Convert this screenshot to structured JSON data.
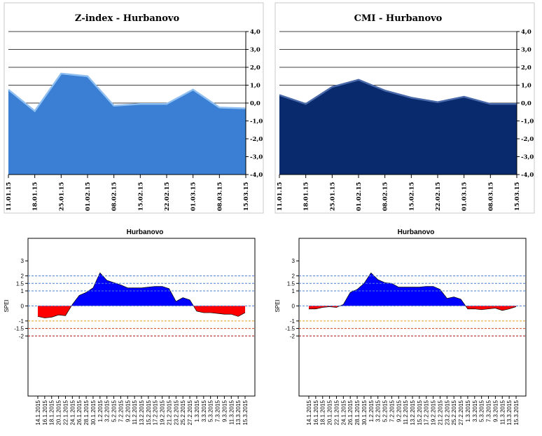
{
  "chart_data": [
    {
      "type": "area",
      "title": "Z-index - Hurbanovo",
      "categories": [
        "11.01.15",
        "18.01.15",
        "25.01.15",
        "01.02.15",
        "08.02.15",
        "15.02.15",
        "22.02.15",
        "01.03.15",
        "08.03.15",
        "15.03.15"
      ],
      "y_ticks": [
        "4,0",
        "3,0",
        "2,0",
        "1,0",
        "0,0",
        "-1,0",
        "-2,0",
        "-3,0",
        "-4,0"
      ],
      "ylim": [
        -4,
        4
      ],
      "values": [
        0.75,
        -0.45,
        1.65,
        1.5,
        -0.15,
        -0.05,
        -0.05,
        0.75,
        -0.25,
        -0.3
      ],
      "fill_color": "#3a7fd4",
      "grid": true
    },
    {
      "type": "area",
      "title": "CMI - Hurbanovo",
      "categories": [
        "11.01.15",
        "18.01.15",
        "25.01.15",
        "01.02.15",
        "08.02.15",
        "15.02.15",
        "22.02.15",
        "01.03.15",
        "08.03.15",
        "15.03.15"
      ],
      "y_ticks": [
        "4,0",
        "3,0",
        "2,0",
        "1,0",
        "0,0",
        "-1,0",
        "-2,0",
        "-3,0",
        "-4,0"
      ],
      "ylim": [
        -4,
        4
      ],
      "values": [
        0.45,
        -0.05,
        0.9,
        1.3,
        0.7,
        0.3,
        0.05,
        0.35,
        -0.05,
        -0.05
      ],
      "fill_color": "#0a2a6e",
      "grid": true
    },
    {
      "type": "area",
      "title": "Hurbanovo",
      "ylabel": "SPEI",
      "categories": [
        "14.1.2015",
        "16.1.2015",
        "18.1.2015",
        "20.1.2015",
        "22.1.2015",
        "24.1.2015",
        "26.1.2015",
        "28.1.2015",
        "30.1.2015",
        "1.2.2015",
        "3.2.2015",
        "5.2.2015",
        "7.2.2015",
        "9.2.2015",
        "11.2.2015",
        "13.2.2015",
        "15.2.2015",
        "17.2.2015",
        "19.2.2015",
        "21.2.2015",
        "23.2.2015",
        "25.2.2015",
        "27.2.2015",
        "1.3.2015",
        "3.3.2015",
        "5.3.2015",
        "7.3.2015",
        "9.3.2015",
        "11.3.2015",
        "13.3.2015",
        "15.3.2015"
      ],
      "y_ticks": [
        "3",
        "2",
        "1.5",
        "1",
        "0",
        "-1",
        "-1.5",
        "-2"
      ],
      "ylim": [
        -6,
        4.5
      ],
      "values": [
        -0.7,
        -0.8,
        -0.75,
        -0.6,
        -0.65,
        0.1,
        0.7,
        0.9,
        1.2,
        2.2,
        1.7,
        1.55,
        1.4,
        1.2,
        1.2,
        1.2,
        1.25,
        1.3,
        1.3,
        1.15,
        0.3,
        0.55,
        0.4,
        -0.35,
        -0.45,
        -0.45,
        -0.5,
        -0.55,
        -0.55,
        -0.7,
        -0.45
      ],
      "thresholds": [
        {
          "value": 2,
          "color": "#4a7fd4"
        },
        {
          "value": 1.5,
          "color": "#4a7fd4"
        },
        {
          "value": 1,
          "color": "#4a7fd4"
        },
        {
          "value": 0,
          "color": "#4a7fd4"
        },
        {
          "value": -1,
          "color": "#e0a020"
        },
        {
          "value": -1.5,
          "color": "#d04a20"
        },
        {
          "value": -2,
          "color": "#a01010"
        }
      ],
      "positive_color": "#0000ff",
      "negative_color": "#ff0000"
    },
    {
      "type": "area",
      "title": "Hurbanovo",
      "ylabel": "SPEI",
      "categories": [
        "14.1.2015",
        "16.1.2015",
        "18.1.2015",
        "20.1.2015",
        "22.1.2015",
        "24.1.2015",
        "26.1.2015",
        "28.1.2015",
        "30.1.2015",
        "1.2.2015",
        "3.2.2015",
        "5.2.2015",
        "7.2.2015",
        "9.2.2015",
        "11.2.2015",
        "13.2.2015",
        "15.2.2015",
        "17.2.2015",
        "19.2.2015",
        "21.2.2015",
        "23.2.2015",
        "25.2.2015",
        "27.2.2015",
        "1.3.2015",
        "3.3.2015",
        "5.3.2015",
        "7.3.2015",
        "9.3.2015",
        "11.3.2015",
        "13.3.2015",
        "15.3.2015"
      ],
      "y_ticks": [
        "3",
        "2",
        "1.5",
        "1",
        "0",
        "-1",
        "-1.5",
        "-2"
      ],
      "ylim": [
        -6,
        4.5
      ],
      "values": [
        -0.2,
        -0.2,
        -0.1,
        -0.05,
        -0.1,
        0.1,
        0.9,
        1.1,
        1.5,
        2.2,
        1.75,
        1.55,
        1.5,
        1.25,
        1.25,
        1.25,
        1.25,
        1.3,
        1.3,
        1.1,
        0.5,
        0.6,
        0.45,
        -0.2,
        -0.2,
        -0.25,
        -0.2,
        -0.15,
        -0.3,
        -0.2,
        -0.05
      ],
      "thresholds": [
        {
          "value": 2,
          "color": "#4a7fd4"
        },
        {
          "value": 1.5,
          "color": "#4a7fd4"
        },
        {
          "value": 1,
          "color": "#4a7fd4"
        },
        {
          "value": 0,
          "color": "#4a7fd4"
        },
        {
          "value": -1,
          "color": "#e0a020"
        },
        {
          "value": -1.5,
          "color": "#d04a20"
        },
        {
          "value": -2,
          "color": "#a01010"
        }
      ],
      "positive_color": "#0000ff",
      "negative_color": "#ff0000"
    }
  ]
}
